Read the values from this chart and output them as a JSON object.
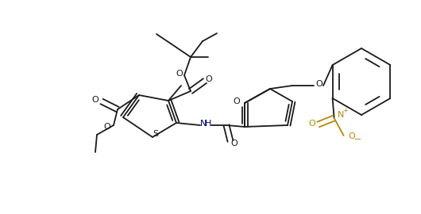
{
  "background": "#ffffff",
  "lc": "#1a1a1a",
  "lc_blue": "#00008B",
  "lc_gold": "#B8860B",
  "lw": 1.3,
  "figsize": [
    5.3,
    2.7
  ],
  "dpi": 100,
  "xlim": [
    0,
    530
  ],
  "ylim": [
    0,
    270
  ]
}
